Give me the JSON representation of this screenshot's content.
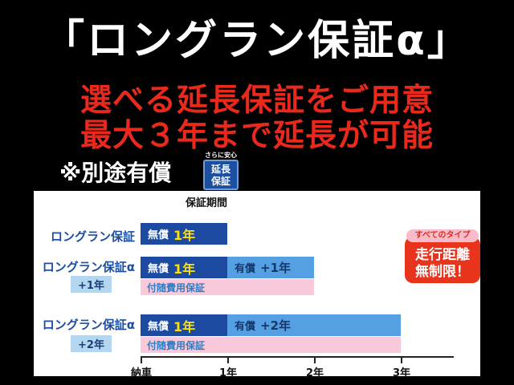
{
  "header": {
    "title": "「ロングラン保証α」",
    "line1": "選べる延長保証をご用意",
    "line2": "最大３年まで延長が可能",
    "note": "※別途有償",
    "stamp": {
      "caption": "さらに安心",
      "word1": "延長",
      "word2": "保証"
    }
  },
  "chart": {
    "title": "保証期間",
    "rows": [
      {
        "label": "ロングラン保証",
        "free_label": "無償",
        "free_years": "1年"
      },
      {
        "label": "ロングラン保証α",
        "sublabel": "+1年",
        "free_label": "無償",
        "free_years": "1年",
        "paid_label": "有償",
        "paid_years": "+1年",
        "pink_label": "付随費用保証"
      },
      {
        "label": "ロングラン保証α",
        "sublabel": "+2年",
        "free_label": "無償",
        "free_years": "1年",
        "paid_label": "有償",
        "paid_years": "+2年",
        "pink_label": "付随費用保証"
      }
    ],
    "axis": [
      "納車",
      "1年",
      "2年",
      "3年"
    ],
    "badge": {
      "pill": "すべてのタイプ",
      "line1": "走行距離",
      "line2": "無制限！"
    }
  },
  "colors": {
    "background": "#000000",
    "headline_white": "#ffffff",
    "accent_red": "#e8291c",
    "navy_bar": "#1b4aa0",
    "light_blue_bar": "#54a0e2",
    "pink_bar": "#f8c9da",
    "label_blue": "#1d4fa1",
    "sublabel_bg": "#b5d6f0",
    "highlight_yellow": "#ffe100"
  },
  "chart_data": {
    "type": "bar",
    "orientation": "horizontal",
    "title": "保証期間",
    "categories": [
      "ロングラン保証",
      "ロングラン保証α（+1年）",
      "ロングラン保証α（+2年）"
    ],
    "series": [
      {
        "name": "無償",
        "values": [
          1,
          1,
          1
        ]
      },
      {
        "name": "有償",
        "values": [
          0,
          1,
          2
        ]
      },
      {
        "name": "付随費用保証",
        "values": [
          0,
          2,
          3
        ]
      }
    ],
    "x_ticks": [
      "納車",
      "1年",
      "2年",
      "3年"
    ],
    "xlim": [
      0,
      3
    ],
    "unit": "年",
    "legend_position": "none",
    "grid": false,
    "annotations": [
      "すべてのタイプ 走行距離 無制限！",
      "※別途有償"
    ]
  }
}
